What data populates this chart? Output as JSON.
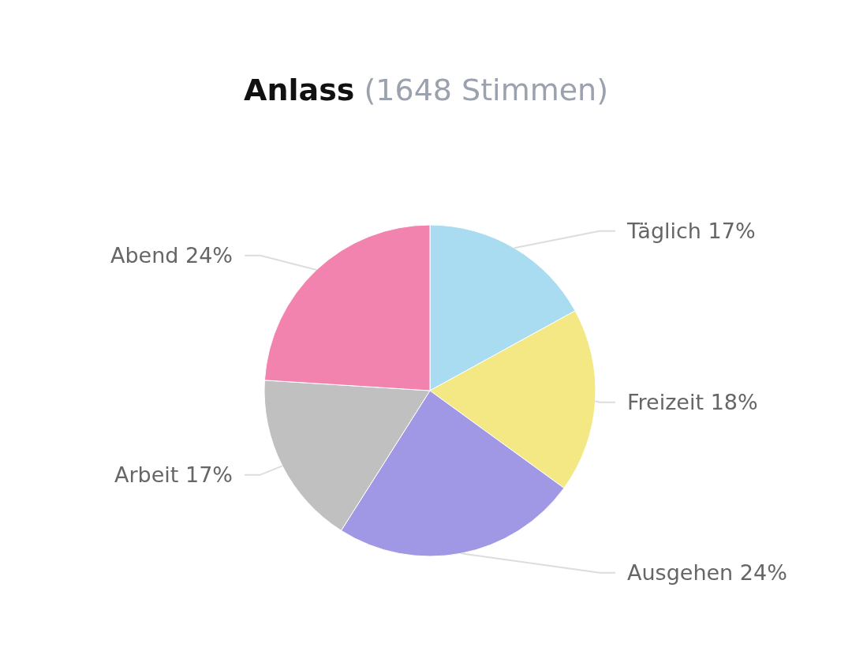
{
  "chart_data": {
    "type": "pie",
    "title": "Anlass",
    "subtitle": "(1648 Stimmen)",
    "categories": [
      "Täglich",
      "Freizeit",
      "Ausgehen",
      "Arbeit",
      "Abend"
    ],
    "values": [
      17,
      18,
      24,
      17,
      24
    ],
    "colors": [
      "#a9dcf0",
      "#f3e883",
      "#a097e5",
      "#c0c0c0",
      "#f282ae"
    ],
    "value_labels": [
      "17%",
      "18%",
      "24%",
      "17%",
      "24%"
    ]
  }
}
